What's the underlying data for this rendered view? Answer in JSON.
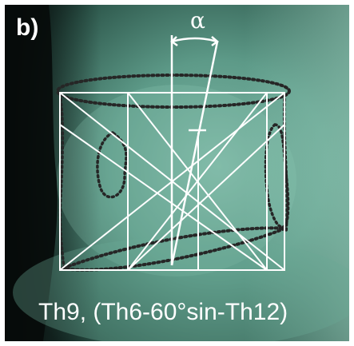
{
  "figure": {
    "panel_label": "b)",
    "angle_symbol": "α",
    "caption": "Th9, (Th6-60°sin-Th12)"
  },
  "colors": {
    "background_dark": "#0a100e",
    "tissue_green": "#5d9a88",
    "overlay_lines": "#ffffff",
    "dotted_outline": "#2a2a2a"
  }
}
